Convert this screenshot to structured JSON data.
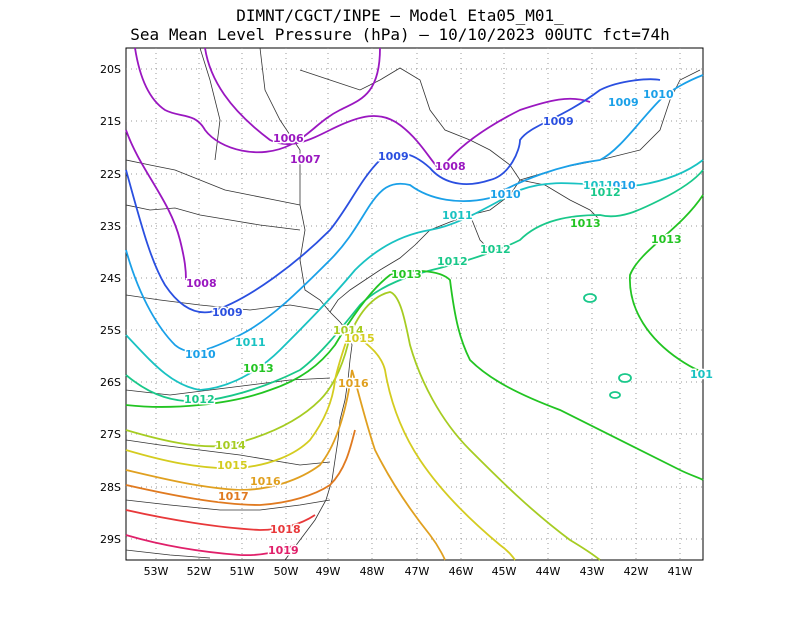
{
  "title_line1": "DIMNT/CGCT/INPE –  Model Eta05_M01_",
  "title_line2": "Sea Mean Level Pressure (hPa) – 10/10/2023 00UTC fct=74h",
  "lon_labels": [
    "53W",
    "52W",
    "51W",
    "50W",
    "49W",
    "48W",
    "47W",
    "46W",
    "45W",
    "44W",
    "43W",
    "42W",
    "41W"
  ],
  "lat_labels": [
    "20S",
    "21S",
    "22S",
    "23S",
    "24S",
    "25S",
    "26S",
    "27S",
    "28S",
    "29S"
  ],
  "isobar_labels": [
    {
      "text": "1006",
      "color": "#9a17c0"
    },
    {
      "text": "1007",
      "color": "#9a17c0"
    },
    {
      "text": "1008",
      "color": "#9a17c0"
    },
    {
      "text": "1008",
      "color": "#9a17c0"
    },
    {
      "text": "1009",
      "color": "#2a4fe0"
    },
    {
      "text": "1009",
      "color": "#2a4fe0"
    },
    {
      "text": "1009",
      "color": "#2a4fe0"
    },
    {
      "text": "1009",
      "color": "#1aa0e8"
    },
    {
      "text": "1010",
      "color": "#1aa0e8"
    },
    {
      "text": "1010",
      "color": "#1aa0e8"
    },
    {
      "text": "1010",
      "color": "#1aa0e8"
    },
    {
      "text": "1010",
      "color": "#1aa0e8"
    },
    {
      "text": "1011",
      "color": "#19c2c2"
    },
    {
      "text": "1011",
      "color": "#19c2c2"
    },
    {
      "text": "1011",
      "color": "#19c2c2"
    },
    {
      "text": "1012",
      "color": "#19c88a"
    },
    {
      "text": "1012",
      "color": "#19c88a"
    },
    {
      "text": "1012",
      "color": "#19c88a"
    },
    {
      "text": "1012",
      "color": "#19c88a"
    },
    {
      "text": "1013",
      "color": "#22c422"
    },
    {
      "text": "1013",
      "color": "#22c422"
    },
    {
      "text": "1013",
      "color": "#22c422"
    },
    {
      "text": "1013",
      "color": "#22c422"
    },
    {
      "text": "101",
      "color": "#19c2c2"
    },
    {
      "text": "1014",
      "color": "#a6cc22"
    },
    {
      "text": "1014",
      "color": "#a6cc22"
    },
    {
      "text": "1015",
      "color": "#d4cc20"
    },
    {
      "text": "1015",
      "color": "#d4cc20"
    },
    {
      "text": "1016",
      "color": "#e0a020"
    },
    {
      "text": "1016",
      "color": "#e0a020"
    },
    {
      "text": "1017",
      "color": "#e07a20"
    },
    {
      "text": "1018",
      "color": "#e8383a"
    },
    {
      "text": "1019",
      "color": "#e0206a"
    }
  ]
}
